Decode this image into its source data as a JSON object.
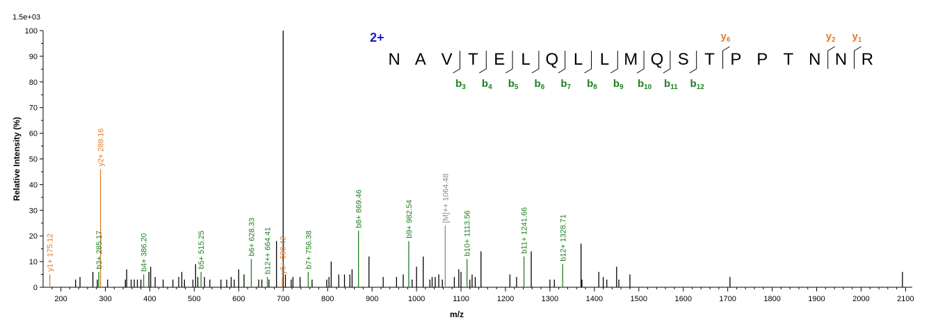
{
  "chart_data": {
    "type": "bar",
    "scale_label": "1.5e+03",
    "xlabel": "m/z",
    "ylabel": "Relative   Intensity (%)",
    "xlim": [
      160,
      2115
    ],
    "ylim": [
      0,
      100
    ],
    "x_ticks": [
      200,
      300,
      400,
      500,
      600,
      700,
      800,
      900,
      1000,
      1100,
      1200,
      1300,
      1400,
      1500,
      1600,
      1700,
      1800,
      1900,
      2000,
      2100
    ],
    "y_ticks": [
      0,
      10,
      20,
      30,
      40,
      50,
      60,
      70,
      80,
      90,
      100
    ],
    "colors": {
      "b_ion": "#1f7f1f",
      "y_ion": "#e07a2c",
      "precursor": "#8a8a8a",
      "other": "#000000",
      "charge": "#1a1acc"
    },
    "charge": "2+",
    "sequence": [
      "N",
      "A",
      "V",
      "T",
      "E",
      "L",
      "Q",
      "L",
      "L",
      "M",
      "Q",
      "S",
      "T",
      "P",
      "P",
      "T",
      "N",
      "N",
      "R"
    ],
    "b_ions": [
      {
        "label": "b",
        "sub": "3",
        "after": 3
      },
      {
        "label": "b",
        "sub": "4",
        "after": 4
      },
      {
        "label": "b",
        "sub": "5",
        "after": 5
      },
      {
        "label": "b",
        "sub": "6",
        "after": 6
      },
      {
        "label": "b",
        "sub": "7",
        "after": 7
      },
      {
        "label": "b",
        "sub": "8",
        "after": 8
      },
      {
        "label": "b",
        "sub": "9",
        "after": 9
      },
      {
        "label": "b",
        "sub": "10",
        "after": 10
      },
      {
        "label": "b",
        "sub": "11",
        "after": 11
      },
      {
        "label": "b",
        "sub": "12",
        "after": 12
      }
    ],
    "y_ions": [
      {
        "label": "y",
        "sub": "6",
        "after": 13
      },
      {
        "label": "y",
        "sub": "2",
        "after": 17
      },
      {
        "label": "y",
        "sub": "1",
        "after": 18
      }
    ],
    "labeled_peaks": [
      {
        "mz": 175.12,
        "intensity": 5,
        "type": "y",
        "label": "y1+ 175.12"
      },
      {
        "mz": 285.17,
        "intensity": 6,
        "type": "b",
        "label": "b3+ 285.17"
      },
      {
        "mz": 289.16,
        "intensity": 46,
        "type": "y",
        "label": "y2+ 289.16"
      },
      {
        "mz": 386.2,
        "intensity": 5,
        "type": "b",
        "label": "b4+ 386.20"
      },
      {
        "mz": 515.25,
        "intensity": 6,
        "type": "b",
        "label": "b5+ 515.25"
      },
      {
        "mz": 628.33,
        "intensity": 11,
        "type": "b",
        "label": "b6+ 628.33"
      },
      {
        "mz": 664.41,
        "intensity": 4,
        "type": "b",
        "label": "b12++ 664.41"
      },
      {
        "mz": 698.42,
        "intensity": 4,
        "type": "y",
        "label": "y6+ 698.42"
      },
      {
        "mz": 756.38,
        "intensity": 6,
        "type": "b",
        "label": "b7+ 756.38"
      },
      {
        "mz": 869.46,
        "intensity": 22,
        "type": "b",
        "label": "b8+ 869.46"
      },
      {
        "mz": 982.54,
        "intensity": 18,
        "type": "b",
        "label": "b9+ 982.54"
      },
      {
        "mz": 1064.48,
        "intensity": 24,
        "type": "precursor",
        "label": "[M]++ 1064.48"
      },
      {
        "mz": 1113.56,
        "intensity": 11,
        "type": "b",
        "label": "b10+ 1113.56"
      },
      {
        "mz": 1241.66,
        "intensity": 12,
        "type": "b",
        "label": "b11+ 1241.66"
      },
      {
        "mz": 1328.71,
        "intensity": 9,
        "type": "b",
        "label": "b12+ 1328.71"
      }
    ],
    "other_peaks": [
      {
        "mz": 233,
        "intensity": 3
      },
      {
        "mz": 243,
        "intensity": 4
      },
      {
        "mz": 272,
        "intensity": 6
      },
      {
        "mz": 282,
        "intensity": 3
      },
      {
        "mz": 305,
        "intensity": 3
      },
      {
        "mz": 345,
        "intensity": 3
      },
      {
        "mz": 348,
        "intensity": 7
      },
      {
        "mz": 358,
        "intensity": 3
      },
      {
        "mz": 365,
        "intensity": 3
      },
      {
        "mz": 372,
        "intensity": 3
      },
      {
        "mz": 380,
        "intensity": 3
      },
      {
        "mz": 398,
        "intensity": 6
      },
      {
        "mz": 402,
        "intensity": 8
      },
      {
        "mz": 412,
        "intensity": 4
      },
      {
        "mz": 430,
        "intensity": 3
      },
      {
        "mz": 452,
        "intensity": 3
      },
      {
        "mz": 465,
        "intensity": 4
      },
      {
        "mz": 472,
        "intensity": 6
      },
      {
        "mz": 478,
        "intensity": 3
      },
      {
        "mz": 497,
        "intensity": 3
      },
      {
        "mz": 503,
        "intensity": 9
      },
      {
        "mz": 508,
        "intensity": 4
      },
      {
        "mz": 523,
        "intensity": 4
      },
      {
        "mz": 535,
        "intensity": 3
      },
      {
        "mz": 560,
        "intensity": 3
      },
      {
        "mz": 573,
        "intensity": 3
      },
      {
        "mz": 583,
        "intensity": 4
      },
      {
        "mz": 590,
        "intensity": 3
      },
      {
        "mz": 600,
        "intensity": 7
      },
      {
        "mz": 612,
        "intensity": 5
      },
      {
        "mz": 645,
        "intensity": 3
      },
      {
        "mz": 652,
        "intensity": 3
      },
      {
        "mz": 668,
        "intensity": 3
      },
      {
        "mz": 685,
        "intensity": 18
      },
      {
        "mz": 700,
        "intensity": 100
      },
      {
        "mz": 705,
        "intensity": 5
      },
      {
        "mz": 718,
        "intensity": 3
      },
      {
        "mz": 722,
        "intensity": 4
      },
      {
        "mz": 738,
        "intensity": 4
      },
      {
        "mz": 765,
        "intensity": 3
      },
      {
        "mz": 798,
        "intensity": 3
      },
      {
        "mz": 803,
        "intensity": 4
      },
      {
        "mz": 808,
        "intensity": 10
      },
      {
        "mz": 825,
        "intensity": 5
      },
      {
        "mz": 838,
        "intensity": 5
      },
      {
        "mz": 850,
        "intensity": 5
      },
      {
        "mz": 855,
        "intensity": 7
      },
      {
        "mz": 893,
        "intensity": 12
      },
      {
        "mz": 925,
        "intensity": 4
      },
      {
        "mz": 955,
        "intensity": 4
      },
      {
        "mz": 970,
        "intensity": 5
      },
      {
        "mz": 990,
        "intensity": 3
      },
      {
        "mz": 1000,
        "intensity": 8
      },
      {
        "mz": 1015,
        "intensity": 12
      },
      {
        "mz": 1030,
        "intensity": 3
      },
      {
        "mz": 1035,
        "intensity": 4
      },
      {
        "mz": 1042,
        "intensity": 4
      },
      {
        "mz": 1050,
        "intensity": 5
      },
      {
        "mz": 1058,
        "intensity": 3
      },
      {
        "mz": 1085,
        "intensity": 4
      },
      {
        "mz": 1095,
        "intensity": 7
      },
      {
        "mz": 1100,
        "intensity": 6
      },
      {
        "mz": 1120,
        "intensity": 3
      },
      {
        "mz": 1125,
        "intensity": 5
      },
      {
        "mz": 1132,
        "intensity": 4
      },
      {
        "mz": 1145,
        "intensity": 14
      },
      {
        "mz": 1210,
        "intensity": 5
      },
      {
        "mz": 1225,
        "intensity": 4
      },
      {
        "mz": 1258,
        "intensity": 14
      },
      {
        "mz": 1300,
        "intensity": 3
      },
      {
        "mz": 1310,
        "intensity": 3
      },
      {
        "mz": 1370,
        "intensity": 17
      },
      {
        "mz": 1372,
        "intensity": 3
      },
      {
        "mz": 1410,
        "intensity": 6
      },
      {
        "mz": 1420,
        "intensity": 4
      },
      {
        "mz": 1428,
        "intensity": 3
      },
      {
        "mz": 1450,
        "intensity": 8
      },
      {
        "mz": 1455,
        "intensity": 3
      },
      {
        "mz": 1480,
        "intensity": 5
      },
      {
        "mz": 1705,
        "intensity": 4
      },
      {
        "mz": 2093,
        "intensity": 6
      }
    ]
  }
}
